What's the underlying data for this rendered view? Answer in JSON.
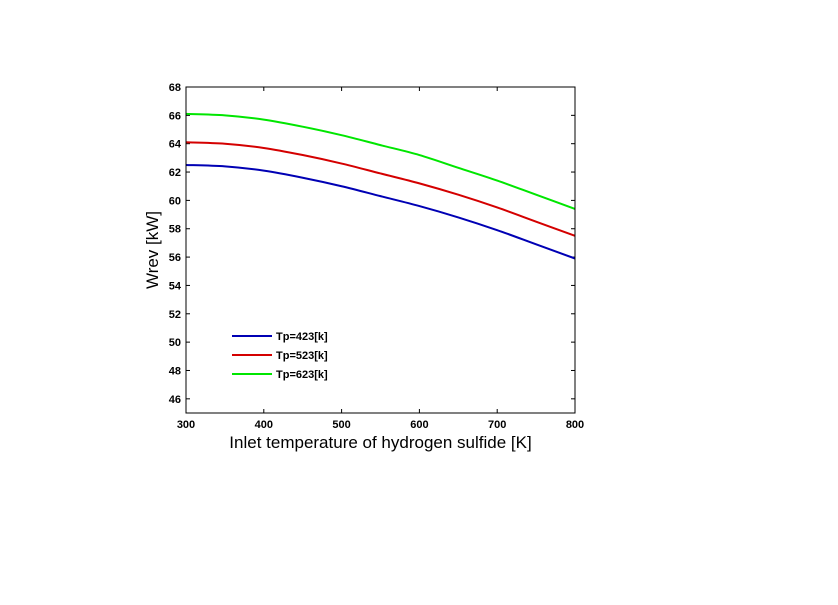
{
  "chart_data": {
    "type": "line",
    "title": "",
    "xlabel": "Inlet temperature of hydrogen sulfide [K]",
    "ylabel": "Wrev [kW]",
    "xlim": [
      300,
      800
    ],
    "ylim": [
      45,
      68
    ],
    "xticks": [
      300,
      400,
      500,
      600,
      700,
      800
    ],
    "yticks": [
      46,
      48,
      50,
      52,
      54,
      56,
      58,
      60,
      62,
      64,
      66,
      68
    ],
    "grid": false,
    "legend_position": "lower-left",
    "x": [
      300,
      350,
      400,
      450,
      500,
      550,
      600,
      650,
      700,
      750,
      800
    ],
    "series": [
      {
        "name": "Tp=423[k]",
        "color": "#0000b4",
        "values": [
          62.5,
          62.4,
          62.1,
          61.6,
          61.0,
          60.3,
          59.6,
          58.8,
          57.9,
          56.9,
          55.9
        ]
      },
      {
        "name": "Tp=523[k]",
        "color": "#d40000",
        "values": [
          64.1,
          64.0,
          63.7,
          63.2,
          62.6,
          61.9,
          61.2,
          60.4,
          59.5,
          58.5,
          57.5
        ]
      },
      {
        "name": "Tp=623[k]",
        "color": "#00e600",
        "values": [
          66.1,
          66.0,
          65.7,
          65.2,
          64.6,
          63.9,
          63.2,
          62.3,
          61.4,
          60.4,
          59.4
        ]
      }
    ]
  }
}
